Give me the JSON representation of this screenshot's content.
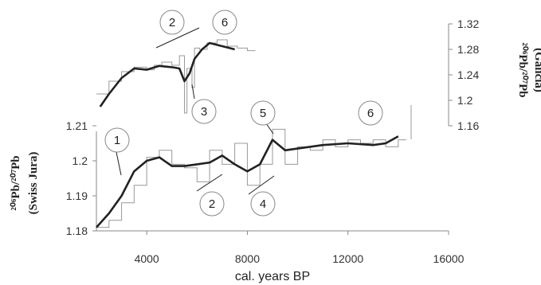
{
  "chart_data": [
    {
      "name": "swiss-jura",
      "type": "line",
      "xlabel": "cal. years BP",
      "x_ticks": [
        "4000",
        "8000",
        "12000",
        "16000"
      ],
      "x_tick_values": [
        4000,
        8000,
        12000,
        16000
      ],
      "xlim": [
        2000,
        16000
      ],
      "y_ticks": [
        "1.21",
        "1.2",
        "1.19",
        "1.18"
      ],
      "y_tick_values": [
        1.21,
        1.2,
        1.19,
        1.18
      ],
      "ylim": [
        1.18,
        1.21
      ],
      "ylabel_line1": "²⁰⁶Pb/²⁰⁷Pb",
      "ylabel_line2": "(Swiss Jura)",
      "series": [
        {
          "style": "step",
          "x": [
            2000,
            2500,
            3000,
            3500,
            4000,
            4500,
            5000,
            5500,
            6000,
            6500,
            7000,
            7500,
            8000,
            8500,
            9000,
            9500,
            10000,
            10500,
            11000,
            11500,
            12000,
            12500,
            13000,
            13500,
            14000
          ],
          "y": [
            1.181,
            1.183,
            1.188,
            1.193,
            1.201,
            1.203,
            1.199,
            1.198,
            1.194,
            1.203,
            1.199,
            1.205,
            1.193,
            1.199,
            1.209,
            1.199,
            1.204,
            1.203,
            1.206,
            1.204,
            1.206,
            1.205,
            1.206,
            1.204,
            1.206
          ]
        },
        {
          "style": "smooth",
          "x": [
            2000,
            2500,
            3000,
            3500,
            4000,
            4500,
            5000,
            5500,
            6000,
            6500,
            7000,
            7500,
            8000,
            8500,
            9000,
            9500,
            10000,
            11000,
            12000,
            13000,
            13500,
            14000
          ],
          "y": [
            1.181,
            1.185,
            1.19,
            1.197,
            1.2,
            1.201,
            1.1985,
            1.1985,
            1.199,
            1.1995,
            1.2015,
            1.199,
            1.197,
            1.199,
            1.206,
            1.203,
            1.2035,
            1.2045,
            1.205,
            1.2045,
            1.205,
            1.207
          ]
        }
      ],
      "annotations": [
        "1",
        "2",
        "4",
        "5",
        "6"
      ]
    },
    {
      "name": "galicia",
      "type": "line",
      "y_ticks": [
        "1.32",
        "1.28",
        "1.24",
        "1.2",
        "1.16"
      ],
      "y_tick_values": [
        1.32,
        1.28,
        1.24,
        1.2,
        1.16
      ],
      "ylim": [
        1.16,
        1.32
      ],
      "ylabel_line1": "²⁰⁶Pb/²⁰⁷Pb",
      "ylabel_line2": "(Galicia)",
      "series": [
        {
          "style": "step",
          "x": [
            2000,
            2500,
            3000,
            3500,
            4000,
            4300,
            4600,
            5000,
            5300,
            5500,
            5600,
            5800,
            5900,
            6100,
            6400,
            6800,
            7200,
            7600,
            8000
          ],
          "y": [
            1.21,
            1.23,
            1.245,
            1.252,
            1.248,
            1.255,
            1.26,
            1.255,
            1.27,
            1.18,
            1.25,
            1.22,
            1.282,
            1.28,
            1.29,
            1.295,
            1.285,
            1.282,
            1.278
          ]
        },
        {
          "style": "smooth",
          "x": [
            2150,
            2500,
            3000,
            3500,
            4000,
            4500,
            5000,
            5300,
            5500,
            5700,
            5900,
            6200,
            6500,
            7000,
            7500
          ],
          "y": [
            1.19,
            1.21,
            1.235,
            1.25,
            1.248,
            1.254,
            1.252,
            1.25,
            1.23,
            1.242,
            1.265,
            1.28,
            1.29,
            1.285,
            1.28
          ]
        }
      ],
      "annotations": [
        "2",
        "3",
        "6"
      ]
    }
  ]
}
